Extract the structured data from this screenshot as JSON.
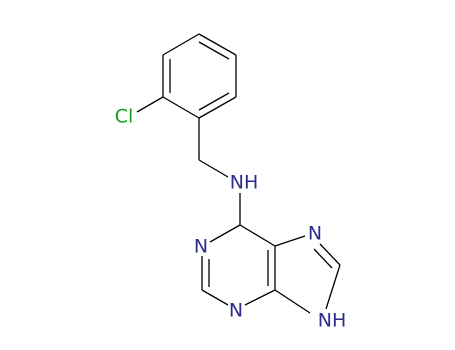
{
  "atoms": {
    "chlorine": "Cl",
    "amine": "NH",
    "n1": "N",
    "n3": "N",
    "n7": "N",
    "n9": "NH"
  }
}
